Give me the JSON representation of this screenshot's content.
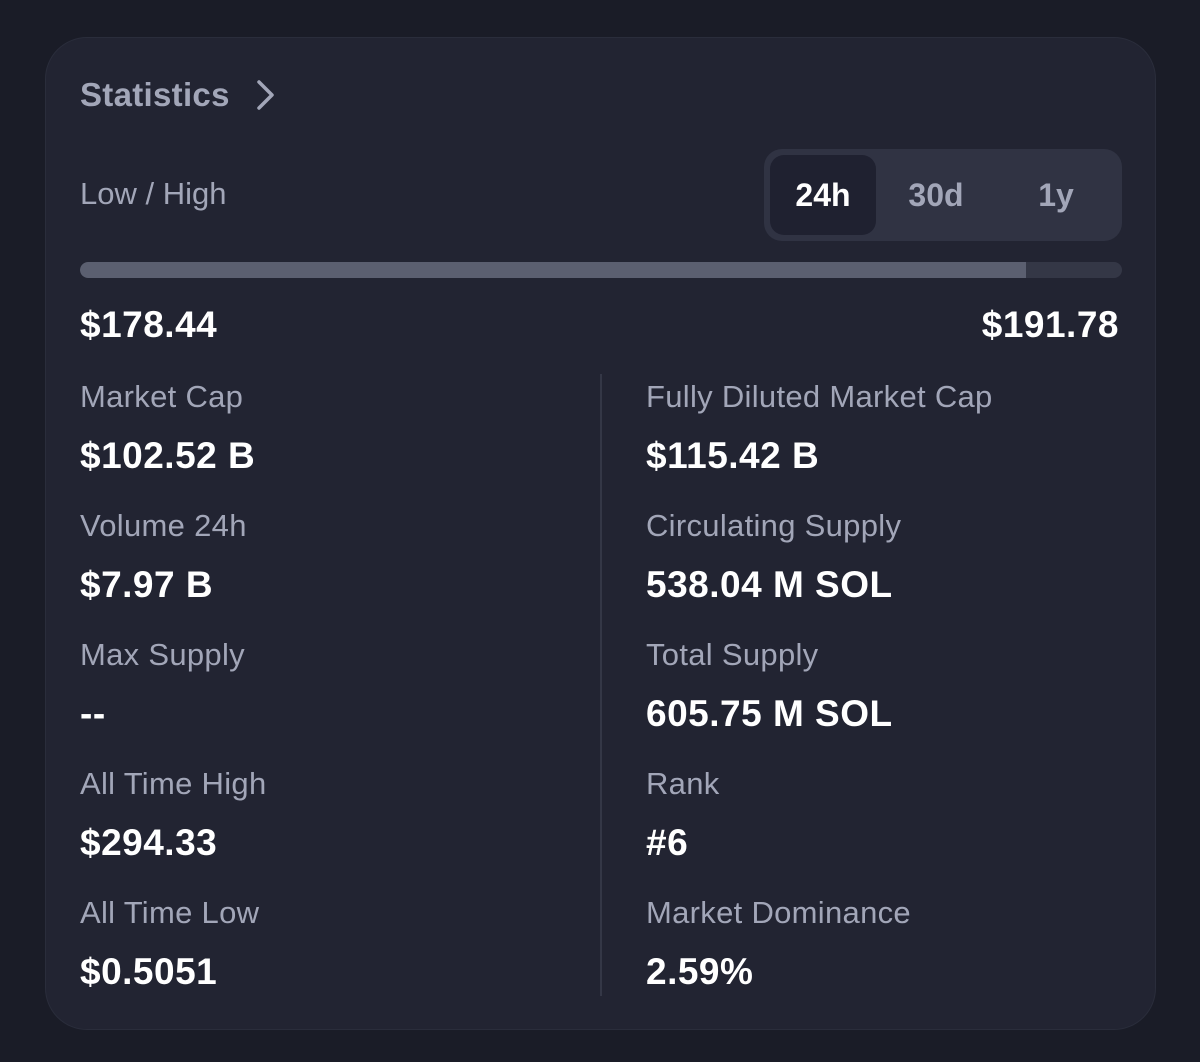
{
  "header": {
    "title": "Statistics",
    "chevron_icon": "chevron-right-icon"
  },
  "range": {
    "label": "Low / High",
    "tabs": [
      {
        "label": "24h",
        "active": true
      },
      {
        "label": "30d",
        "active": false
      },
      {
        "label": "1y",
        "active": false
      }
    ],
    "position_fraction": 0.908,
    "low": "$178.44",
    "high": "$191.78"
  },
  "stats_left": [
    {
      "label": "Market Cap",
      "value": "$102.52 B"
    },
    {
      "label": "Volume 24h",
      "value": "$7.97 B"
    },
    {
      "label": "Max Supply",
      "value": "--"
    },
    {
      "label": "All Time High",
      "value": "$294.33"
    },
    {
      "label": "All Time Low",
      "value": "$0.5051"
    }
  ],
  "stats_right": [
    {
      "label": "Fully Diluted Market Cap",
      "value": "$115.42 B"
    },
    {
      "label": "Circulating Supply",
      "value": "538.04 M SOL"
    },
    {
      "label": "Total Supply",
      "value": "605.75 M SOL"
    },
    {
      "label": "Rank",
      "value": "#6"
    },
    {
      "label": "Market Dominance",
      "value": "2.59%"
    }
  ],
  "colors": {
    "background": "#1a1c27",
    "card": "#222432",
    "muted_text": "#a2a6b8",
    "segment_bg": "#303343",
    "segment_active": "#1f2130",
    "range_fill": "#5b5f70"
  }
}
